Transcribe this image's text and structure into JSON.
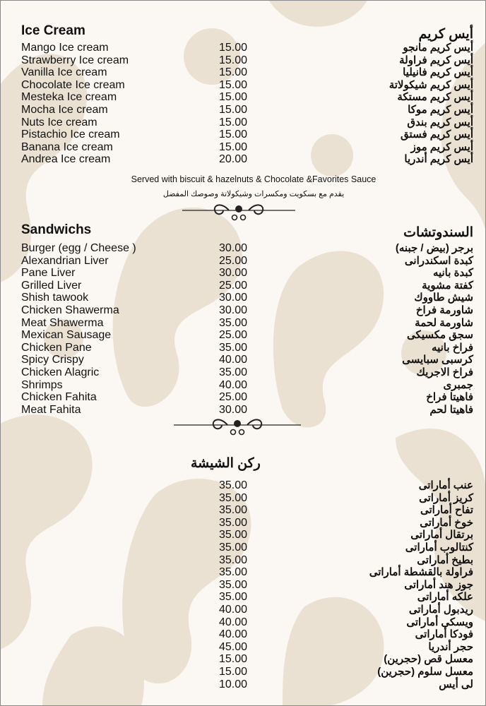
{
  "ice_cream": {
    "title_en": "Ice Cream",
    "title_ar": "أيس كريم",
    "items": [
      {
        "en": "Mango Ice cream",
        "price": "15.00",
        "ar": "أيس كريم مانجو"
      },
      {
        "en": "Strawberry Ice cream",
        "price": "15.00",
        "ar": "أيس كريم فراولة"
      },
      {
        "en": "Vanilla Ice cream",
        "price": "15.00",
        "ar": "أيس كريم فانيليا"
      },
      {
        "en": "Chocolate Ice cream",
        "price": "15.00",
        "ar": "أيس كريم شيكولاتة"
      },
      {
        "en": "Mesteka Ice cream",
        "price": "15.00",
        "ar": "أيس كريم مستكة"
      },
      {
        "en": "Mocha Ice cream",
        "price": "15.00",
        "ar": "أيس كريم موكا"
      },
      {
        "en": "Nuts Ice cream",
        "price": "15.00",
        "ar": "أيس كريم بندق"
      },
      {
        "en": "Pistachio Ice cream",
        "price": "15.00",
        "ar": "أيس كريم فستق"
      },
      {
        "en": "Banana Ice cream",
        "price": "15.00",
        "ar": "أيس كريم موز"
      },
      {
        "en": "Andrea Ice cream",
        "price": "20.00",
        "ar": "أيس كريم أندريا"
      }
    ],
    "note_en": "Served with biscuit & hazelnuts & Chocolate &Favorites Sauce",
    "note_ar": "يقدم مع بسكويت ومكسرات وشيكولاتة وصوصك المفضل"
  },
  "sandwiches": {
    "title_en": "Sandwichs",
    "title_ar": "السندوتشات",
    "items": [
      {
        "en": "Burger (egg / Cheese )",
        "price": "30.00",
        "ar": "برجر (بيض / جبنه)"
      },
      {
        "en": "Alexandrian Liver",
        "price": "25.00",
        "ar": "كبدة اسكندرانى"
      },
      {
        "en": "Pane Liver",
        "price": "30.00",
        "ar": "كبدة بانيه"
      },
      {
        "en": "Grilled Liver",
        "price": "25.00",
        "ar": "كفتة مشوية"
      },
      {
        "en": "Shish tawook",
        "price": "30.00",
        "ar": "شيش طاووك"
      },
      {
        "en": "Chicken Shawerma",
        "price": "30.00",
        "ar": "شاورمة فراخ"
      },
      {
        "en": "Meat Shawerma",
        "price": "35.00",
        "ar": "شاورمة لحمة"
      },
      {
        "en": "Mexican Sausage",
        "price": "25.00",
        "ar": "سجق مكسيكى"
      },
      {
        "en": "Chicken Pane",
        "price": "35.00",
        "ar": "فراخ بانيه"
      },
      {
        "en": "Spicy Crispy",
        "price": "40.00",
        "ar": "كرسبى سبايسى"
      },
      {
        "en": "Chicken Alagric",
        "price": "35.00",
        "ar": "فراخ الاجريك"
      },
      {
        "en": "Shrimps",
        "price": "40.00",
        "ar": "جمبرى"
      },
      {
        "en": "Chicken Fahita",
        "price": "25.00",
        "ar": "فاهيتا فراخ"
      },
      {
        "en": "Meat Fahita",
        "price": "30.00",
        "ar": "فاهيتا لحم"
      }
    ]
  },
  "shisha": {
    "title_ar": "ركن الشيشة",
    "items": [
      {
        "price": "35.00",
        "ar": "عنب أماراتى"
      },
      {
        "price": "35.00",
        "ar": "كريز أماراتى"
      },
      {
        "price": "35.00",
        "ar": "تفاح أماراتى"
      },
      {
        "price": "35.00",
        "ar": "خوخ أماراتى"
      },
      {
        "price": "35.00",
        "ar": "برتقال أماراتى"
      },
      {
        "price": "35.00",
        "ar": "كنتالوب أماراتى"
      },
      {
        "price": "35.00",
        "ar": "بطيخ أماراتى"
      },
      {
        "price": "35.00",
        "ar": "فراولة بالقشطة أماراتى"
      },
      {
        "price": "35.00",
        "ar": "جوز هند أماراتى"
      },
      {
        "price": "35.00",
        "ar": "علكه أماراتى"
      },
      {
        "price": "40.00",
        "ar": "ريدبول أماراتى"
      },
      {
        "price": "40.00",
        "ar": "ويسكى أماراتى"
      },
      {
        "price": "40.00",
        "ar": "فودكا أماراتى"
      },
      {
        "price": "45.00",
        "ar": "حجر أندريا"
      },
      {
        "price": "15.00",
        "ar": "معسل قص (حجرين)"
      },
      {
        "price": "15.00",
        "ar": "معسل سلوم (حجرين)"
      },
      {
        "price": "10.00",
        "ar": "لى أيس"
      }
    ]
  },
  "colors": {
    "background": "#fbf8f3",
    "pattern": "#e9dfcf",
    "text": "#111111"
  }
}
